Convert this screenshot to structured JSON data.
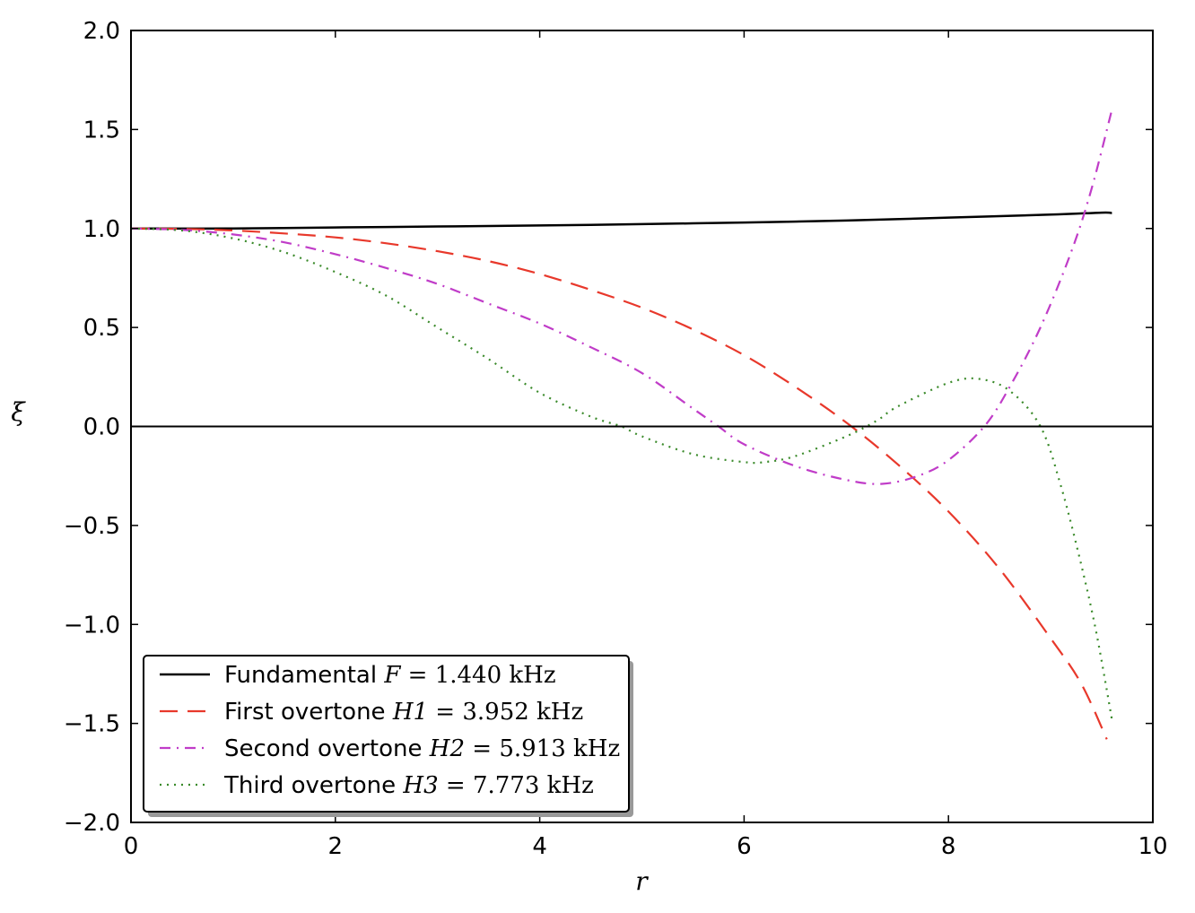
{
  "chart_data": {
    "type": "line",
    "title": "",
    "xlabel": "r",
    "ylabel": "ξ",
    "xlim": [
      0,
      10
    ],
    "ylim": [
      -2.0,
      2.0
    ],
    "xticks": [
      0,
      2,
      4,
      6,
      8,
      10
    ],
    "xtick_labels": [
      "0",
      "2",
      "4",
      "6",
      "8",
      "10"
    ],
    "yticks": [
      2.0,
      1.5,
      1.0,
      0.5,
      0.0,
      -0.5,
      -1.0,
      -1.5,
      -2.0
    ],
    "ytick_labels": [
      "2.0",
      "1.5",
      "1.0",
      "0.5",
      "0.0",
      "−0.5",
      "−1.0",
      "−1.5",
      "−2.0"
    ],
    "reference_line": {
      "y": 0.0,
      "color": "#000000"
    },
    "grid": false,
    "legend_position": "lower-left",
    "series": [
      {
        "name": "Fundamental",
        "label_math": {
          "symbol": "F",
          "value": "1.440",
          "unit": "kHz"
        },
        "color": "#000000",
        "style": "solid",
        "x": [
          0,
          1,
          2,
          3,
          4,
          5,
          6,
          7,
          8,
          9,
          9.5,
          9.6
        ],
        "y": [
          1.0,
          1.0,
          1.005,
          1.01,
          1.015,
          1.022,
          1.03,
          1.04,
          1.055,
          1.07,
          1.08,
          1.078
        ]
      },
      {
        "name": "First overtone",
        "label_math": {
          "symbol": "H1",
          "value": "3.952",
          "unit": "kHz"
        },
        "color": "#e8382b",
        "style": "dashed",
        "x": [
          0,
          0.5,
          1,
          1.5,
          2,
          2.5,
          3,
          3.5,
          4,
          4.5,
          5,
          5.5,
          6,
          6.5,
          7,
          7.5,
          8,
          8.5,
          9,
          9.3,
          9.55
        ],
        "y": [
          1.0,
          0.998,
          0.99,
          0.975,
          0.955,
          0.925,
          0.885,
          0.835,
          0.77,
          0.69,
          0.6,
          0.49,
          0.36,
          0.2,
          0.02,
          -0.19,
          -0.43,
          -0.72,
          -1.07,
          -1.3,
          -1.58
        ]
      },
      {
        "name": "Second overtone",
        "label_math": {
          "symbol": "H2",
          "value": "5.913",
          "unit": "kHz"
        },
        "color": "#c03cc8",
        "style": "dashdot",
        "x": [
          0,
          0.5,
          1,
          1.5,
          2,
          2.5,
          3,
          3.5,
          4,
          4.5,
          5,
          5.5,
          5.75,
          6,
          6.5,
          7,
          7.35,
          7.7,
          8,
          8.35,
          8.6,
          8.9,
          9.2,
          9.4,
          9.6
        ],
        "y": [
          1.0,
          0.993,
          0.97,
          0.93,
          0.87,
          0.8,
          0.72,
          0.62,
          0.52,
          0.4,
          0.27,
          0.09,
          0.0,
          -0.09,
          -0.2,
          -0.27,
          -0.29,
          -0.25,
          -0.17,
          0.0,
          0.2,
          0.5,
          0.88,
          1.2,
          1.6
        ]
      },
      {
        "name": "Third overtone",
        "label_math": {
          "symbol": "H3",
          "value": "7.773",
          "unit": "kHz"
        },
        "color": "#3a8a2a",
        "style": "dotted",
        "x": [
          0,
          0.5,
          1,
          1.5,
          2,
          2.5,
          3,
          3.5,
          4,
          4.5,
          4.8,
          5,
          5.5,
          6,
          6.2,
          6.5,
          7,
          7.3,
          7.5,
          8,
          8.3,
          8.6,
          8.9,
          9.1,
          9.3,
          9.45,
          9.6
        ],
        "y": [
          1.0,
          0.99,
          0.95,
          0.88,
          0.78,
          0.66,
          0.5,
          0.34,
          0.17,
          0.05,
          0.0,
          -0.05,
          -0.14,
          -0.18,
          -0.18,
          -0.15,
          -0.05,
          0.03,
          0.1,
          0.22,
          0.24,
          0.18,
          0.0,
          -0.3,
          -0.7,
          -1.05,
          -1.48
        ]
      }
    ]
  }
}
